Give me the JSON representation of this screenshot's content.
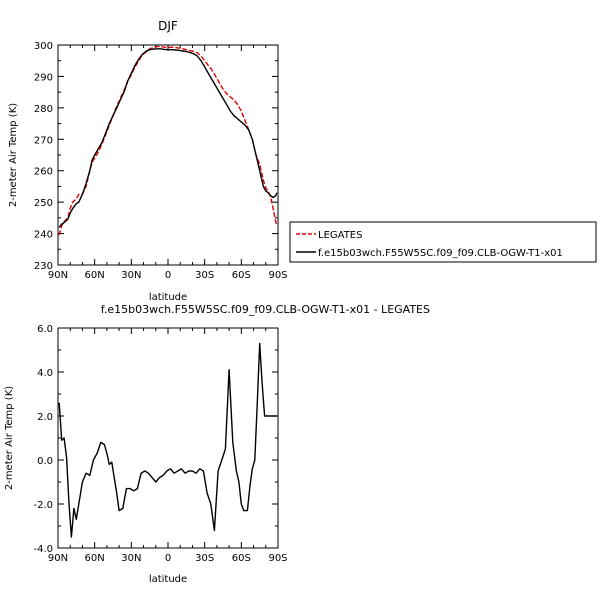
{
  "chart_data": [
    {
      "type": "line",
      "title": "DJF",
      "xlabel": "latitude",
      "ylabel": "2-meter Air Temp (K)",
      "xlim": [
        -90,
        90
      ],
      "ylim": [
        230,
        300
      ],
      "xticks": [
        {
          "value": -90,
          "label": "90N"
        },
        {
          "value": -60,
          "label": "60N"
        },
        {
          "value": -30,
          "label": "30N"
        },
        {
          "value": 0,
          "label": "0"
        },
        {
          "value": 30,
          "label": "30S"
        },
        {
          "value": 60,
          "label": "60S"
        },
        {
          "value": 90,
          "label": "90S"
        }
      ],
      "yticks": [
        230,
        240,
        250,
        260,
        270,
        280,
        290,
        300
      ],
      "legend_position": "right",
      "series": [
        {
          "name": "LEGATES",
          "color": "#e00000",
          "dash": "dashed",
          "x": [
            -89,
            -87,
            -85,
            -82,
            -80,
            -78,
            -75,
            -73,
            -70,
            -67,
            -64,
            -62,
            -60,
            -57,
            -54,
            -51,
            -48,
            -45,
            -42,
            -39,
            -36,
            -33,
            -30,
            -27,
            -24,
            -21,
            -18,
            -15,
            -12,
            -9,
            -6,
            -3,
            0,
            3,
            6,
            9,
            12,
            15,
            18,
            21,
            24,
            27,
            30,
            33,
            36,
            39,
            42,
            45,
            48,
            51,
            54,
            57,
            60,
            63,
            66,
            69,
            72,
            75,
            78,
            80,
            82,
            84,
            86,
            88,
            89
          ],
          "y": [
            239.5,
            242.5,
            243.8,
            245,
            248,
            250,
            251,
            252.5,
            252.5,
            255,
            260,
            262.8,
            264,
            266,
            268.5,
            271.5,
            274.5,
            277.5,
            280.5,
            283,
            285.5,
            288.5,
            290.5,
            293,
            295,
            296.8,
            297.8,
            298.8,
            299.2,
            299.5,
            299.5,
            299.3,
            299.2,
            299.3,
            299.2,
            299,
            298.8,
            298.5,
            298.2,
            298,
            297.5,
            296.5,
            295,
            293.5,
            292,
            290,
            288,
            286,
            284.5,
            283.5,
            282.5,
            281,
            279,
            276,
            273,
            270,
            265,
            262,
            257,
            254.5,
            253.5,
            251.5,
            248,
            244,
            242.5
          ]
        },
        {
          "name": "f.e15b03wch.F55W5SC.f09_f09.CLB-OGW-T1-x01",
          "color": "#000000",
          "dash": "solid",
          "x": [
            -89,
            -87,
            -85,
            -82,
            -80,
            -78,
            -75,
            -73,
            -70,
            -67,
            -64,
            -62,
            -60,
            -57,
            -54,
            -51,
            -48,
            -45,
            -42,
            -39,
            -36,
            -33,
            -30,
            -27,
            -24,
            -21,
            -18,
            -15,
            -12,
            -9,
            -6,
            -3,
            0,
            3,
            6,
            9,
            12,
            15,
            18,
            21,
            24,
            27,
            30,
            33,
            36,
            39,
            42,
            45,
            48,
            51,
            54,
            57,
            60,
            63,
            66,
            69,
            72,
            75,
            78,
            80,
            82,
            84,
            86,
            88,
            89
          ],
          "y": [
            242,
            243,
            243.5,
            244.5,
            246.5,
            248,
            249.5,
            250,
            252.5,
            256,
            260,
            263.5,
            265,
            267,
            269,
            272,
            275,
            277.5,
            280,
            282.5,
            285,
            288.5,
            291,
            293.5,
            295.5,
            297,
            298,
            298.5,
            298.7,
            298.8,
            298.8,
            298.6,
            298.5,
            298.5,
            298.4,
            298.3,
            298.1,
            297.9,
            297.6,
            297.2,
            296.5,
            295,
            293,
            291,
            289,
            287,
            285,
            283,
            281,
            279,
            277.5,
            276.5,
            275.5,
            274.5,
            273,
            270,
            265,
            260,
            255,
            253.5,
            253,
            252,
            251.5,
            252,
            253
          ]
        }
      ]
    },
    {
      "type": "line",
      "title": "f.e15b03wch.F55W5SC.f09_f09.CLB-OGW-T1-x01 - LEGATES",
      "xlabel": "latitude",
      "ylabel": "2-meter Air Temp (K)",
      "xlim": [
        -90,
        90
      ],
      "ylim": [
        -4,
        6
      ],
      "xticks": [
        {
          "value": -90,
          "label": "90N"
        },
        {
          "value": -60,
          "label": "60N"
        },
        {
          "value": -30,
          "label": "30N"
        },
        {
          "value": 0,
          "label": "0"
        },
        {
          "value": 30,
          "label": "30S"
        },
        {
          "value": 60,
          "label": "60S"
        },
        {
          "value": 90,
          "label": "90S"
        }
      ],
      "yticks": [
        {
          "value": -4,
          "label": "-4.0"
        },
        {
          "value": -2,
          "label": "-2.0"
        },
        {
          "value": 0,
          "label": "0.0"
        },
        {
          "value": 2,
          "label": "2.0"
        },
        {
          "value": 4,
          "label": "4.0"
        },
        {
          "value": 6,
          "label": "6.0"
        }
      ],
      "series": [
        {
          "color": "#000000",
          "dash": "solid",
          "x": [
            -89,
            -87,
            -85,
            -83,
            -81,
            -79,
            -77,
            -75,
            -73,
            -70,
            -67,
            -64,
            -61,
            -58,
            -55,
            -52,
            -50,
            -48,
            -46,
            -44,
            -42,
            -40,
            -37,
            -34,
            -31,
            -28,
            -25,
            -22,
            -19,
            -16,
            -13,
            -10,
            -7,
            -4,
            -1,
            2,
            5,
            8,
            11,
            14,
            17,
            20,
            23,
            26,
            29,
            32,
            35,
            38,
            41,
            44,
            47,
            50,
            53,
            56,
            58,
            60,
            62,
            65,
            67,
            69,
            71,
            73,
            75,
            77,
            79,
            81,
            83,
            85,
            87,
            88,
            89
          ],
          "y": [
            2.6,
            0.9,
            1.0,
            0.1,
            -2.0,
            -3.5,
            -2.2,
            -2.7,
            -2.0,
            -1.0,
            -0.6,
            -0.7,
            0.0,
            0.3,
            0.8,
            0.7,
            0.3,
            -0.2,
            -0.1,
            -0.8,
            -1.5,
            -2.3,
            -2.2,
            -1.3,
            -1.3,
            -1.4,
            -1.3,
            -0.6,
            -0.5,
            -0.6,
            -0.8,
            -1.0,
            -0.8,
            -0.7,
            -0.5,
            -0.4,
            -0.6,
            -0.5,
            -0.4,
            -0.6,
            -0.5,
            -0.5,
            -0.6,
            -0.4,
            -0.5,
            -1.5,
            -2.0,
            -3.2,
            -0.5,
            0.0,
            0.5,
            4.1,
            0.8,
            -0.5,
            -1.0,
            -2.0,
            -2.3,
            -2.3,
            -1.2,
            -0.4,
            0.0,
            2.5,
            5.3,
            3.5,
            2.0,
            2.0,
            2.0,
            2.0,
            2.0,
            2.0,
            2.0
          ]
        }
      ]
    }
  ]
}
